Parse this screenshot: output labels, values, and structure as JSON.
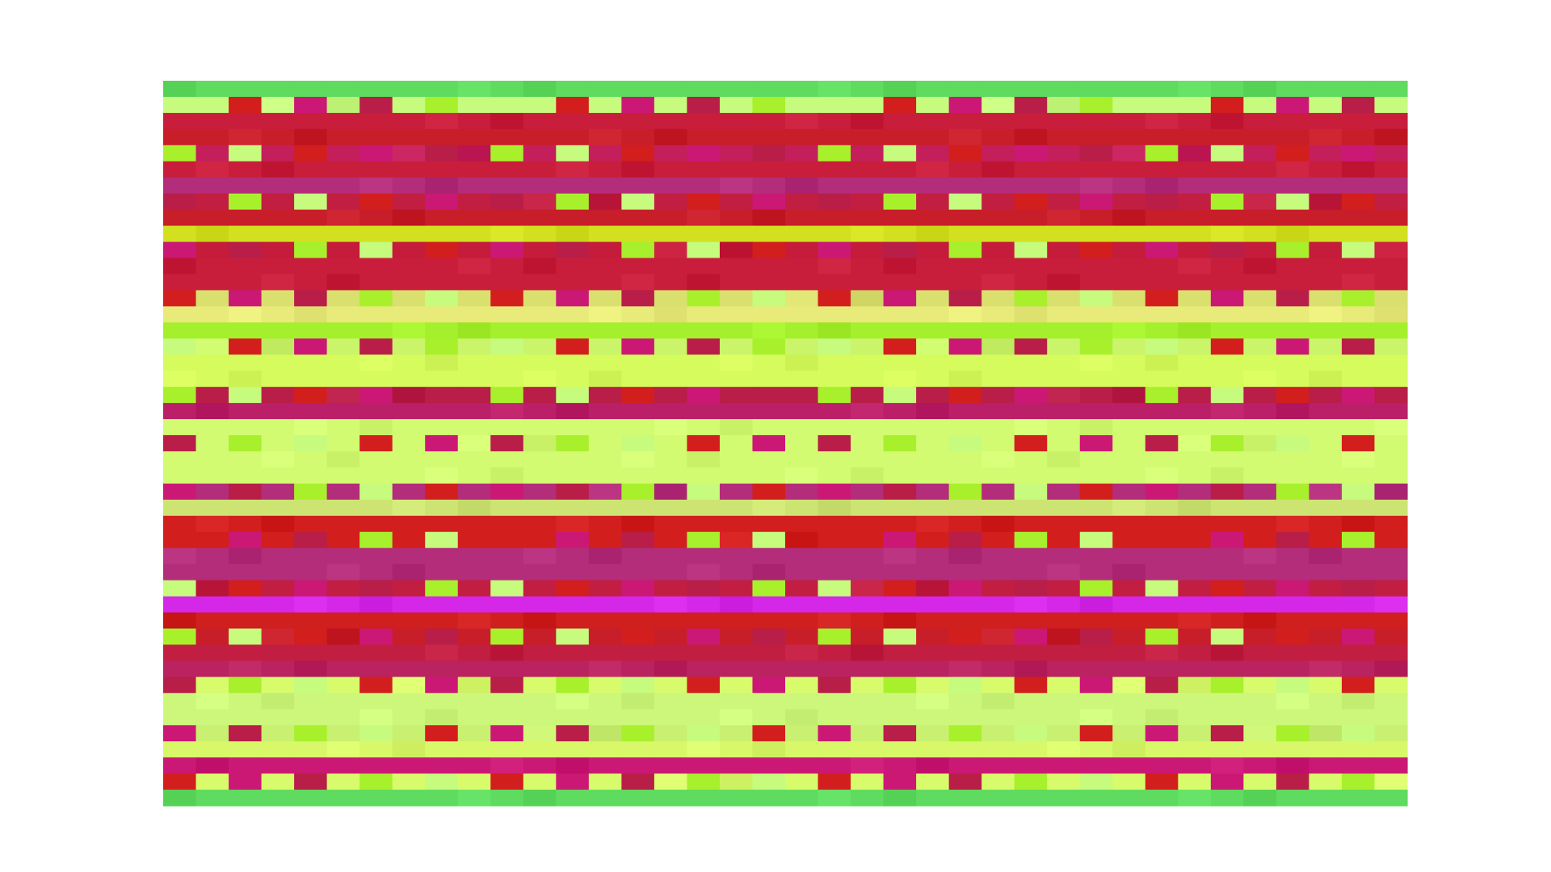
{
  "chart_data": {
    "type": "heatmap",
    "title": "",
    "xlabel": "",
    "ylabel": "",
    "colorbar": false,
    "grid": false,
    "n_rows": 45,
    "n_cols": 38,
    "row_colors": [
      "#5fdb5f",
      "#c6fb7e",
      "#c81e3c",
      "#c81e2a",
      "#c41f5a",
      "#c81e3c",
      "#b32d7a",
      "#c21e41",
      "#c81e2a",
      "#d2e020",
      "#c41c3a",
      "#c81e3c",
      "#c81e3c",
      "#d9e06e",
      "#e8ea7a",
      "#a4f02c",
      "#caf46a",
      "#d5fb5c",
      "#d5fb5c",
      "#b81e48",
      "#ba1f68",
      "#d2fb72",
      "#d2fb72",
      "#d2fb72",
      "#d2fb72",
      "#b32d7a",
      "#cde473",
      "#d31e1e",
      "#d31e1e",
      "#b32d7a",
      "#b32d7a",
      "#c21e41",
      "#d527e8",
      "#cf1f1f",
      "#c81e2a",
      "#c21e41",
      "#ba2260",
      "#d8fb6c",
      "#cdf77b",
      "#cdf77b",
      "#c9f070",
      "#d8f86a",
      "#cb1875",
      "#d8fb6c",
      "#5fdb5f"
    ],
    "col_pattern": "alternating-categorical"
  }
}
